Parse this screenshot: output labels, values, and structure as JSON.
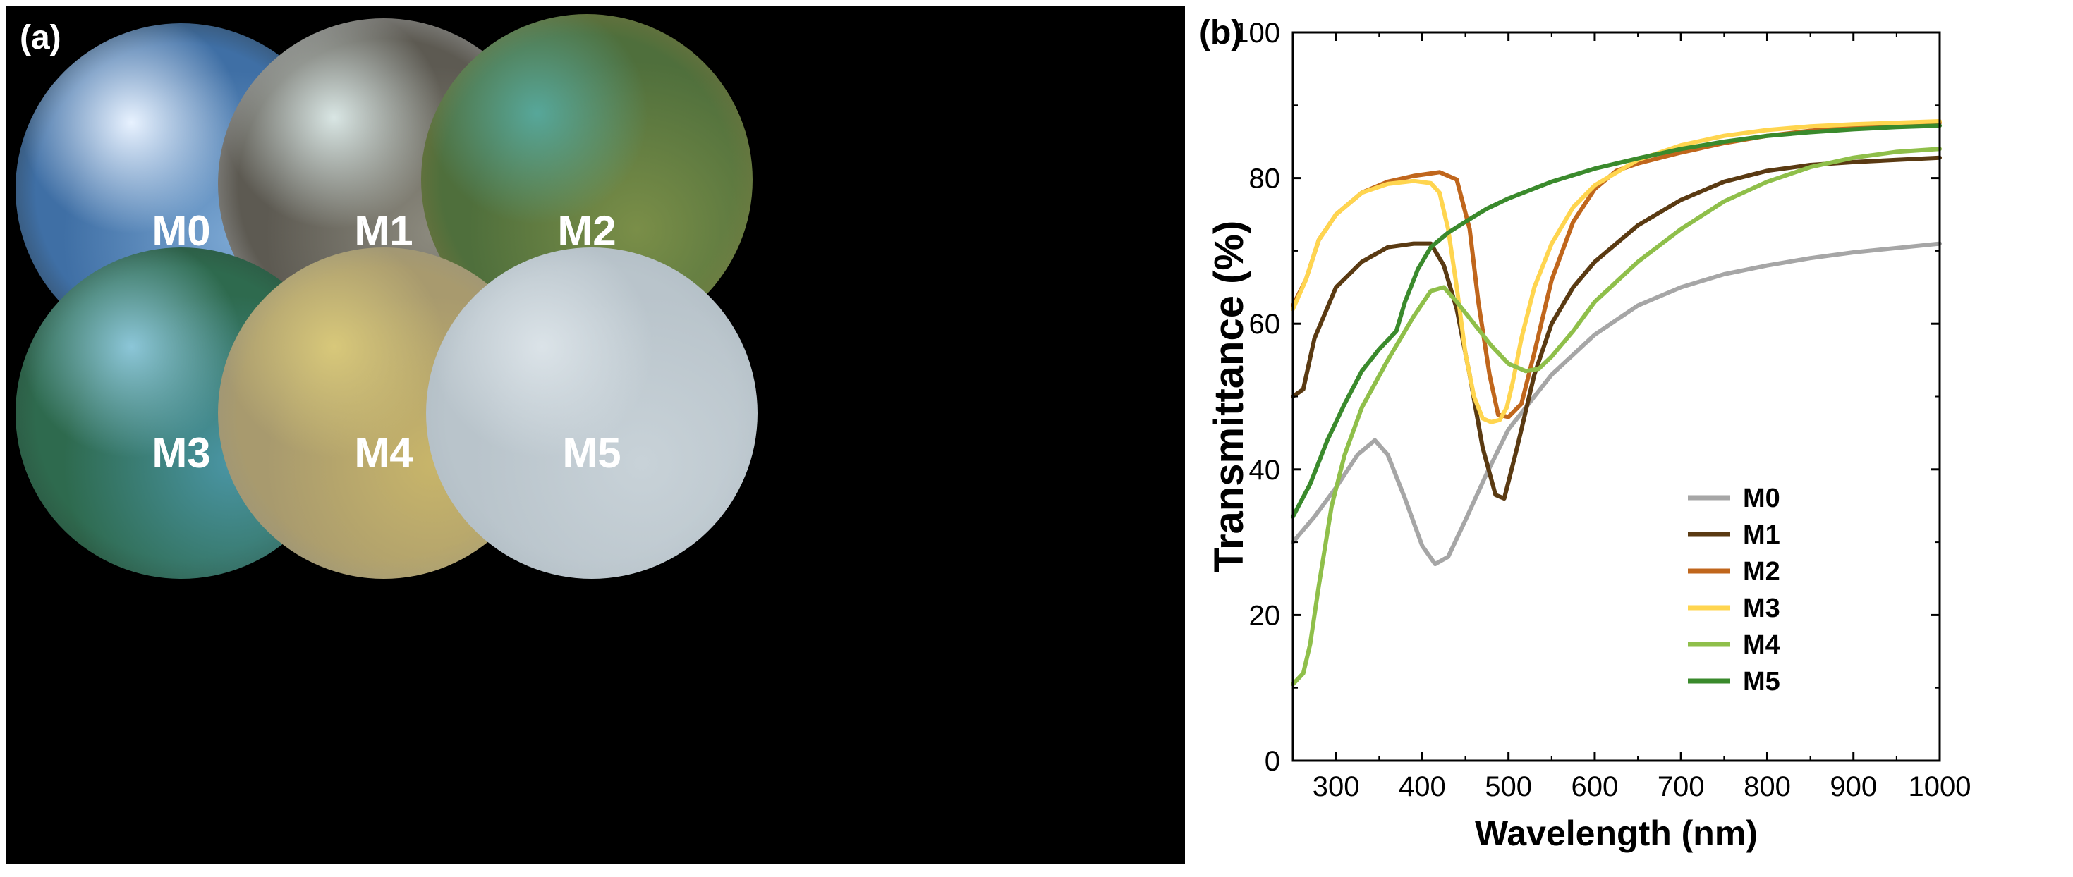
{
  "panel_a": {
    "label": "(a)",
    "samples": [
      {
        "name": "M0",
        "base_color": "#3f6fa5",
        "mid_color": "#7aa6d2",
        "edge_color": "#2a2414",
        "highlight": "#e8f2ff"
      },
      {
        "name": "M1",
        "base_color": "#5d5a52",
        "mid_color": "#8c8a7e",
        "edge_color": "#c9cfd6",
        "highlight": "#d9e6e4"
      },
      {
        "name": "M2",
        "base_color": "#4f6f3c",
        "mid_color": "#7a8e48",
        "edge_color": "#9a7840",
        "highlight": "#57a79a"
      },
      {
        "name": "M3",
        "base_color": "#2e6a4e",
        "mid_color": "#4a95a4",
        "edge_color": "#2a3a30",
        "highlight": "#8cc6d8"
      },
      {
        "name": "M4",
        "base_color": "#a89a6e",
        "mid_color": "#c8b56a",
        "edge_color": "#8e918a",
        "highlight": "#d8c87a"
      },
      {
        "name": "M5",
        "base_color": "#b9c4cb",
        "mid_color": "#c8d2d8",
        "edge_color": "#a9b5bd",
        "highlight": "#dbe3e8"
      }
    ]
  },
  "chart_data": {
    "panel_label": "(b)",
    "type": "line",
    "xlabel": "Wavelength (nm)",
    "ylabel": "Transmittance (%)",
    "xlim": [
      250,
      1000
    ],
    "ylim": [
      0,
      100
    ],
    "xticks": [
      300,
      400,
      500,
      600,
      700,
      800,
      900,
      1000
    ],
    "yticks": [
      0,
      20,
      40,
      60,
      80,
      100
    ],
    "legend_position": "bottom-right",
    "series": [
      {
        "name": "M0",
        "color": "#a6a6a6",
        "x": [
          250,
          275,
          300,
          325,
          345,
          360,
          380,
          400,
          415,
          430,
          450,
          475,
          500,
          550,
          600,
          650,
          700,
          750,
          800,
          850,
          900,
          950,
          1000
        ],
        "y": [
          30,
          33.5,
          37.5,
          42,
          44,
          42,
          36,
          29.5,
          27,
          28,
          33,
          39.5,
          45.5,
          53,
          58.5,
          62.5,
          65,
          66.8,
          68,
          69,
          69.8,
          70.4,
          71
        ]
      },
      {
        "name": "M1",
        "color": "#5a3a12",
        "x": [
          250,
          262,
          275,
          300,
          330,
          360,
          390,
          410,
          425,
          440,
          455,
          470,
          485,
          495,
          510,
          530,
          550,
          575,
          600,
          650,
          700,
          750,
          800,
          850,
          900,
          950,
          1000
        ],
        "y": [
          50,
          51,
          58,
          65,
          68.5,
          70.5,
          71,
          71,
          68,
          62,
          53,
          43,
          36.5,
          36,
          43,
          53,
          60,
          65,
          68.5,
          73.5,
          77,
          79.5,
          81,
          81.8,
          82.2,
          82.5,
          82.8
        ]
      },
      {
        "name": "M2",
        "color": "#c0661c",
        "x": [
          250,
          265,
          280,
          300,
          330,
          360,
          390,
          420,
          440,
          455,
          465,
          478,
          488,
          500,
          515,
          530,
          550,
          575,
          600,
          625,
          650,
          700,
          750,
          800,
          850,
          900,
          950,
          1000
        ],
        "y": [
          62.5,
          66,
          71.5,
          75,
          78,
          79.5,
          80.3,
          80.8,
          79.8,
          73,
          63,
          53,
          47.5,
          47.2,
          49,
          56,
          66,
          74,
          78.5,
          81,
          82,
          83.5,
          84.8,
          85.8,
          86.5,
          87,
          87.3,
          87.6
        ]
      },
      {
        "name": "M3",
        "color": "#ffd54f",
        "x": [
          250,
          265,
          280,
          300,
          330,
          360,
          390,
          410,
          420,
          430,
          440,
          450,
          460,
          470,
          480,
          490,
          498,
          505,
          515,
          530,
          550,
          575,
          600,
          650,
          700,
          750,
          800,
          850,
          900,
          950,
          1000
        ],
        "y": [
          62,
          66,
          71.5,
          75,
          78,
          79.2,
          79.6,
          79.3,
          78,
          73,
          65,
          56,
          50,
          47,
          46.5,
          46.8,
          48.5,
          52,
          58,
          65,
          71,
          76,
          79,
          82.5,
          84.5,
          85.8,
          86.6,
          87.1,
          87.4,
          87.6,
          87.8
        ]
      },
      {
        "name": "M4",
        "color": "#8fbf4a",
        "x": [
          250,
          262,
          270,
          280,
          295,
          310,
          330,
          360,
          390,
          410,
          425,
          440,
          460,
          480,
          500,
          520,
          535,
          550,
          575,
          600,
          650,
          700,
          750,
          800,
          850,
          900,
          950,
          1000
        ],
        "y": [
          10.5,
          12,
          16,
          24,
          35,
          42,
          48.5,
          55,
          61,
          64.5,
          65,
          63,
          60,
          57,
          54.5,
          53.5,
          53.8,
          55.5,
          59,
          63,
          68.5,
          73,
          76.8,
          79.5,
          81.5,
          82.8,
          83.6,
          84
        ]
      },
      {
        "name": "M5",
        "color": "#3a8a2c",
        "x": [
          250,
          270,
          290,
          310,
          330,
          350,
          370,
          380,
          395,
          410,
          430,
          450,
          475,
          500,
          550,
          600,
          650,
          700,
          750,
          800,
          850,
          900,
          950,
          1000
        ],
        "y": [
          33.5,
          38,
          44,
          49,
          53.5,
          56.5,
          59,
          63,
          67.5,
          70.5,
          72.5,
          74,
          75.8,
          77.2,
          79.5,
          81.3,
          82.7,
          84,
          85,
          85.8,
          86.3,
          86.7,
          87,
          87.2
        ]
      }
    ]
  }
}
